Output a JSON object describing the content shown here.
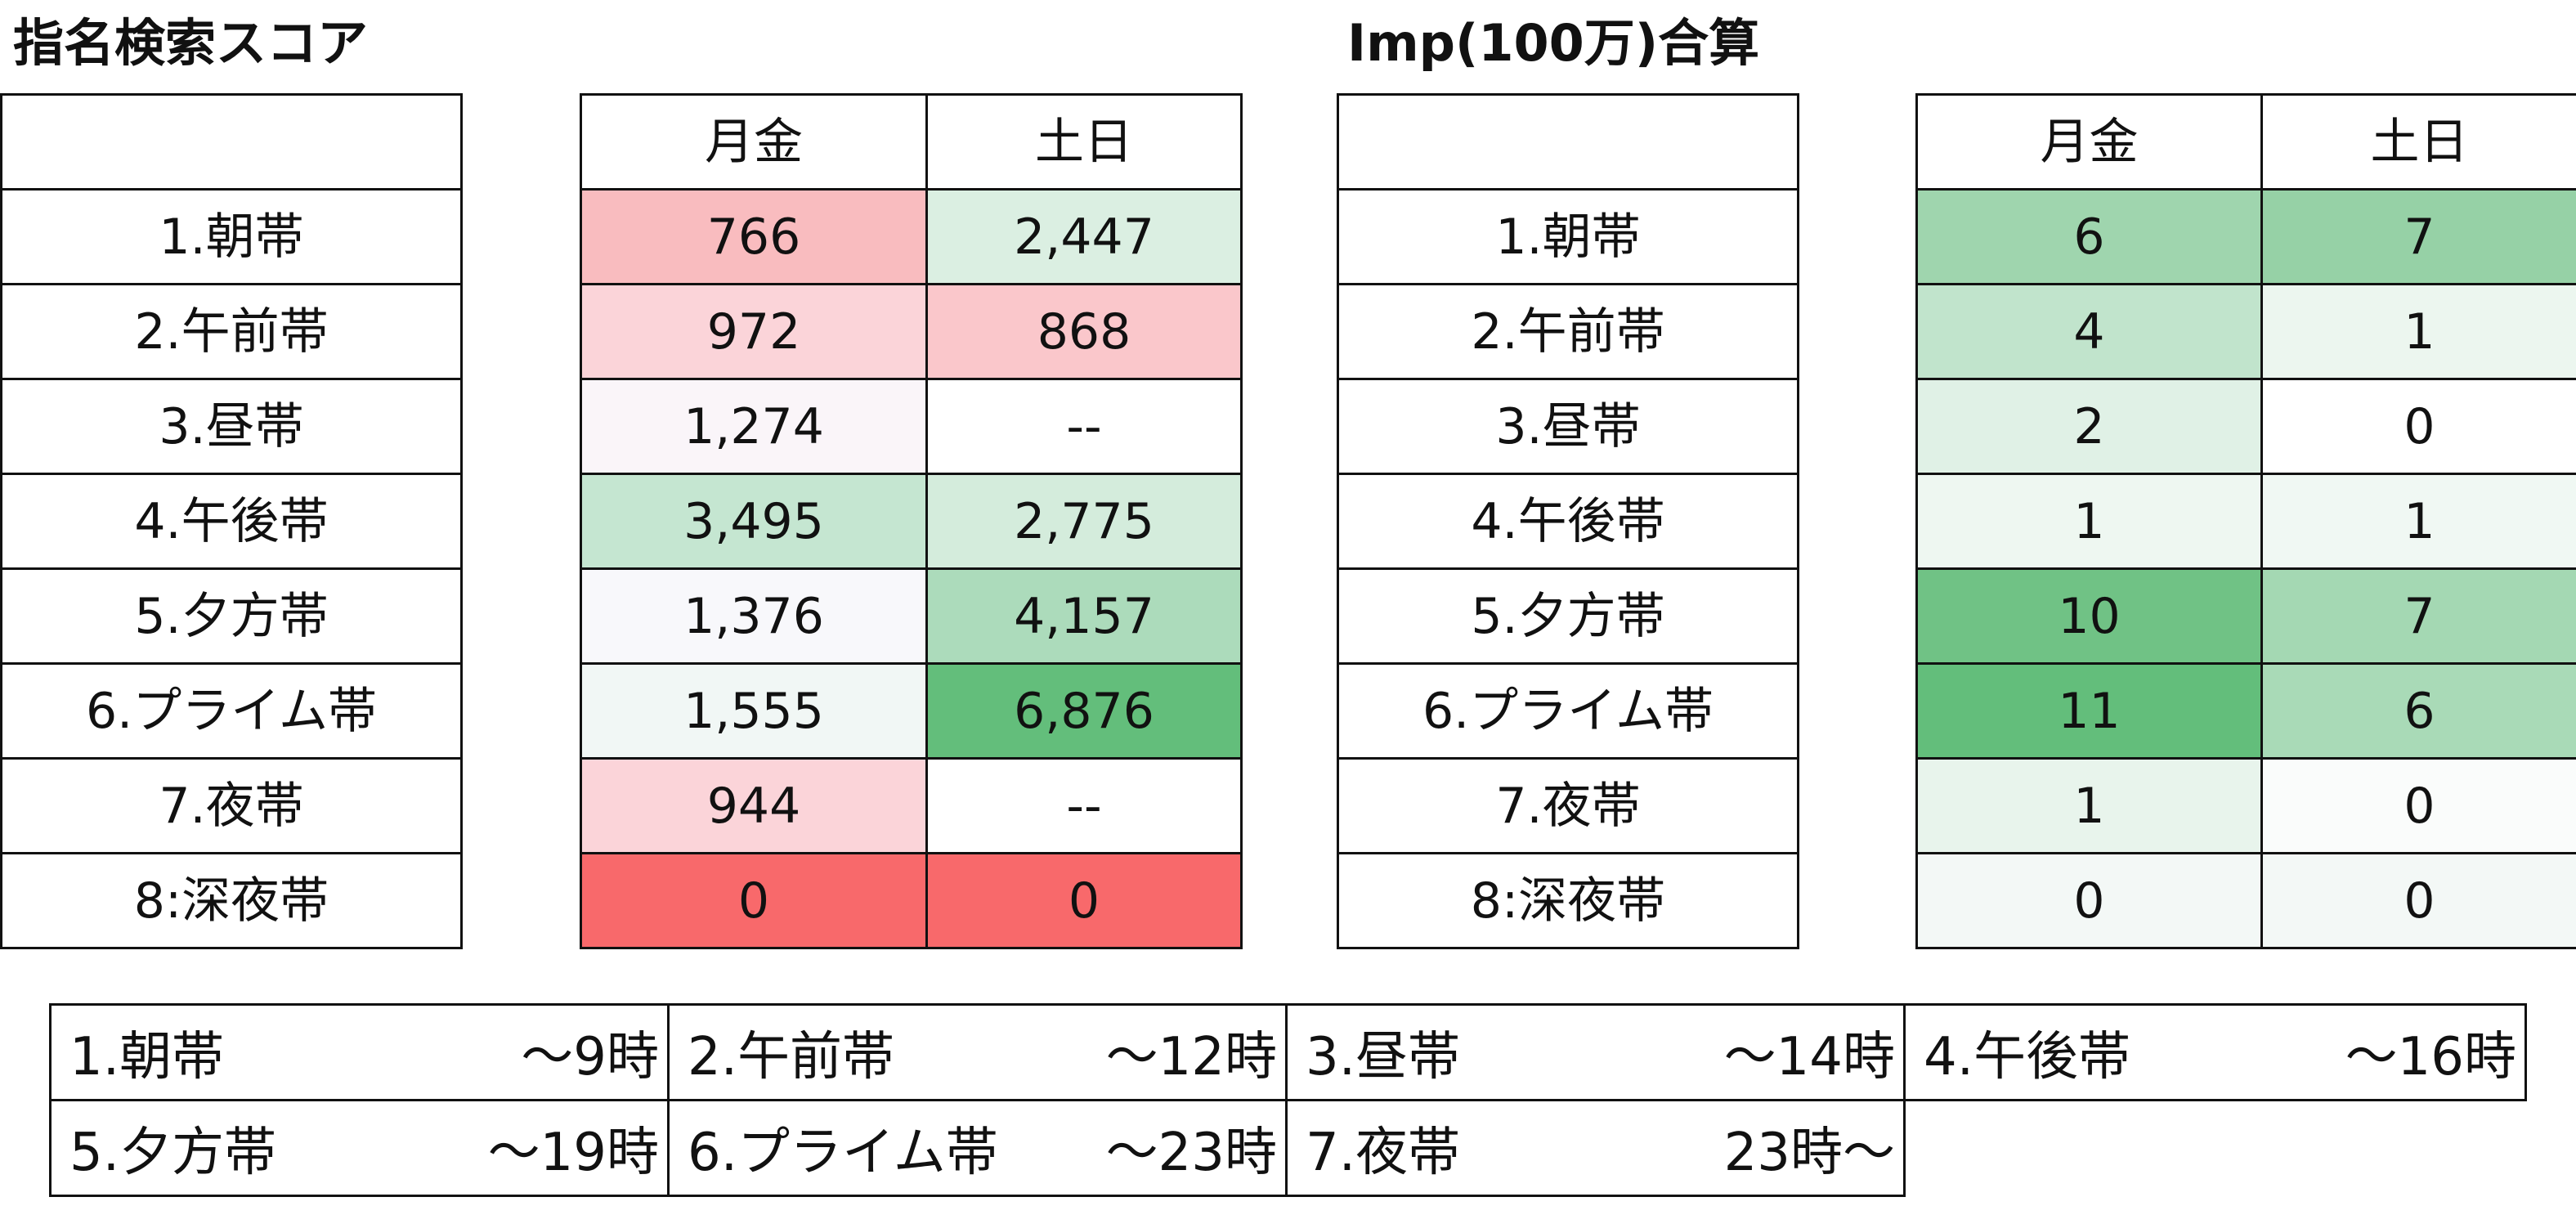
{
  "search_score": {
    "title": "指名検索スコア",
    "row_labels": [
      "1.朝帯",
      "2.午前帯",
      "3.昼帯",
      "4.午後帯",
      "5.夕方帯",
      "6.プライム帯",
      "7.夜帯",
      "8:深夜帯"
    ],
    "headers": [
      "月金",
      "土日"
    ],
    "rows": [
      {
        "weekday": "766",
        "weekday_color": "#f9bcbf",
        "weekend": "2,447",
        "weekend_color": "#dbefe2"
      },
      {
        "weekday": "972",
        "weekday_color": "#fbd4d9",
        "weekend": "868",
        "weekend_color": "#fac7cb"
      },
      {
        "weekday": "1,274",
        "weekday_color": "#faf5f9",
        "weekend": "--",
        "weekend_color": "#ffffff"
      },
      {
        "weekday": "3,495",
        "weekday_color": "#c5e6d1",
        "weekend": "2,775",
        "weekend_color": "#d4ecdc"
      },
      {
        "weekday": "1,376",
        "weekday_color": "#f8f8fb",
        "weekend": "4,157",
        "weekend_color": "#acdbbb"
      },
      {
        "weekday": "1,555",
        "weekday_color": "#f1f7f5",
        "weekend": "6,876",
        "weekend_color": "#63be7b"
      },
      {
        "weekday": "944",
        "weekday_color": "#fbd4d9",
        "weekend": "--",
        "weekend_color": "#ffffff"
      },
      {
        "weekday": "0",
        "weekday_color": "#f8696b",
        "weekend": "0",
        "weekend_color": "#f8696b"
      }
    ]
  },
  "imp_total": {
    "title": "Imp(100万)合算",
    "row_labels": [
      "1.朝帯",
      "2.午前帯",
      "3.昼帯",
      "4.午後帯",
      "5.夕方帯",
      "6.プライム帯",
      "7.夜帯",
      "8:深夜帯"
    ],
    "headers": [
      "月金",
      "土日"
    ],
    "rows": [
      {
        "weekday": "6",
        "weekday_color": "#9fd5ae",
        "weekend": "7",
        "weekend_color": "#96d1a6"
      },
      {
        "weekday": "4",
        "weekday_color": "#c1e4cc",
        "weekend": "1",
        "weekend_color": "#ecf6ef"
      },
      {
        "weekday": "2",
        "weekday_color": "#e0f1e6",
        "weekend": "0",
        "weekend_color": "#ffffff"
      },
      {
        "weekday": "1",
        "weekday_color": "#eef7f1",
        "weekend": "1",
        "weekend_color": "#f0f8f3"
      },
      {
        "weekday": "10",
        "weekday_color": "#70c285",
        "weekend": "7",
        "weekend_color": "#a4d8b3"
      },
      {
        "weekday": "11",
        "weekday_color": "#63be7b",
        "weekend": "6",
        "weekend_color": "#a9dab7"
      },
      {
        "weekday": "1",
        "weekday_color": "#e8f4ec",
        "weekend": "0",
        "weekend_color": "#fafcfb"
      },
      {
        "weekday": "0",
        "weekday_color": "#f3f8f6",
        "weekend": "0",
        "weekend_color": "#f3f8f6"
      }
    ]
  },
  "legend": {
    "rows": [
      [
        {
          "name": "1.朝帯",
          "time": "～9時"
        },
        {
          "name": "2.午前帯",
          "time": "～12時"
        },
        {
          "name": "3.昼帯",
          "time": "～14時"
        },
        {
          "name": "4.午後帯",
          "time": "～16時"
        }
      ],
      [
        {
          "name": "5.夕方帯",
          "time": "～19時"
        },
        {
          "name": "6.プライム帯",
          "time": "～23時"
        },
        {
          "name": "7.夜帯",
          "time": "23時～"
        }
      ]
    ]
  }
}
